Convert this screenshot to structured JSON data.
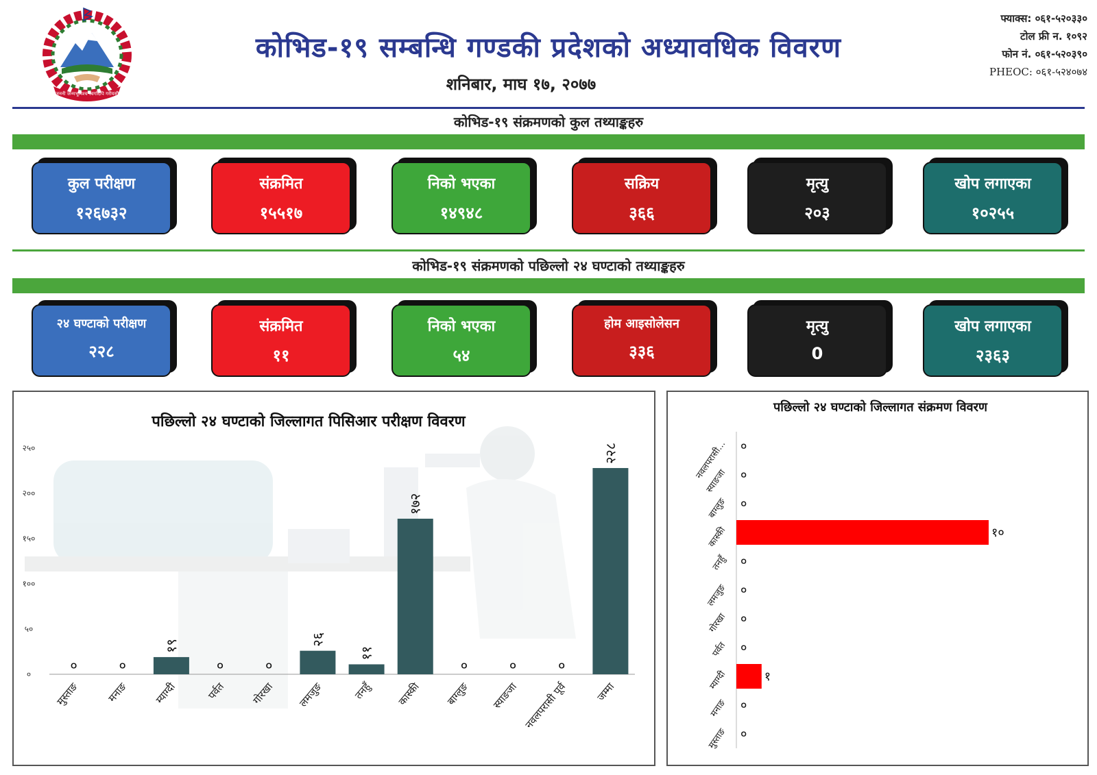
{
  "header": {
    "title": "कोभिड-१९ सम्बन्धि गण्डकी प्रदेशको अध्यावधिक विवरण",
    "date": "शनिबार, माघ १७, २०७७",
    "fax": "फ्याक्स: ०६१-५२०३३०",
    "toll_free": "टोल फ्री न. १०९२",
    "phone": "फोन नं. ०६१-५२०३९०",
    "pheoc": "PHEOC: ०६१-५२४०७४",
    "emblem_text": "जननी जन्मभूमिश्च स्वर्गादपि गरीयसी"
  },
  "section_total": {
    "title": "कोभिड-१९ संक्रमणको कुल तथ्याङ्कहरु",
    "cards": [
      {
        "label": "कुल परीक्षण",
        "value": "१२६७३२",
        "color": "#3a6fbd"
      },
      {
        "label": "संक्रमित",
        "value": "१५५१७",
        "color": "#ed1c24"
      },
      {
        "label": "निको भएका",
        "value": "१४९४८",
        "color": "#3ea73a"
      },
      {
        "label": "सक्रिय",
        "value": "३६६",
        "color": "#c81e1e"
      },
      {
        "label": "मृत्यु",
        "value": "२०३",
        "color": "#1e1e1e"
      },
      {
        "label": "खोप लगाएका",
        "value": "१०२५५",
        "color": "#1d6e6c"
      }
    ]
  },
  "section_24h": {
    "title": "कोभिड-१९ संक्रमणको पछिल्लो २४ घण्टाको तथ्याङ्कहरु",
    "cards": [
      {
        "label": "२४ घण्टाको परीक्षण",
        "value": "२२८",
        "color": "#3a6fbd"
      },
      {
        "label": "संक्रमित",
        "value": "११",
        "color": "#ed1c24"
      },
      {
        "label": "निको भएका",
        "value": "५४",
        "color": "#3ea73a"
      },
      {
        "label": "होम आइसोलेसन",
        "value": "३३६",
        "color": "#c81e1e"
      },
      {
        "label": "मृत्यु",
        "value": "0",
        "color": "#1e1e1e"
      },
      {
        "label": "खोप लगाएका",
        "value": "२३६३",
        "color": "#1d6e6c"
      }
    ]
  },
  "chart_data": [
    {
      "type": "bar",
      "title": "पछिल्लो २४ घण्टाको जिल्लागत पिसिआर परीक्षण विवरण",
      "categories": [
        "मुस्ताङ",
        "मनाङ",
        "म्याग्दी",
        "पर्वत",
        "गोरखा",
        "लमजुङ",
        "तनहुँ",
        "कास्की",
        "बाग्लुङ",
        "स्याङजा",
        "नवलपरासी पूर्व",
        "जम्मा"
      ],
      "values": [
        0,
        0,
        19,
        0,
        0,
        26,
        11,
        172,
        0,
        0,
        0,
        228
      ],
      "value_labels": [
        "०",
        "०",
        "१९",
        "०",
        "०",
        "२६",
        "११",
        "१७२",
        "०",
        "०",
        "०",
        "२२८"
      ],
      "ylim": [
        0,
        250
      ],
      "yticks": [
        0,
        50,
        100,
        150,
        200,
        250
      ],
      "ytick_labels": [
        "०",
        "५०",
        "१००",
        "१५०",
        "२००",
        "२५०"
      ],
      "color": "#335a5e",
      "xlabel": "",
      "ylabel": ""
    },
    {
      "type": "bar",
      "orientation": "horizontal",
      "title": "पछिल्लो २४ घण्टाको जिल्लागत संक्रमण विवरण",
      "categories": [
        "नवलपरासी...",
        "स्याङजा",
        "बाग्लुङ",
        "कास्की",
        "तनहुँ",
        "लमजुङ",
        "गोरखा",
        "पर्वत",
        "म्याग्दी",
        "मनाङ",
        "मुस्ताङ"
      ],
      "values": [
        0,
        0,
        0,
        10,
        0,
        0,
        0,
        0,
        1,
        0,
        0
      ],
      "value_labels": [
        "०",
        "०",
        "०",
        "१०",
        "०",
        "०",
        "०",
        "०",
        "१",
        "०",
        "०"
      ],
      "xlim": [
        0,
        10
      ],
      "color": "#ff0000",
      "xlabel": "",
      "ylabel": ""
    }
  ]
}
